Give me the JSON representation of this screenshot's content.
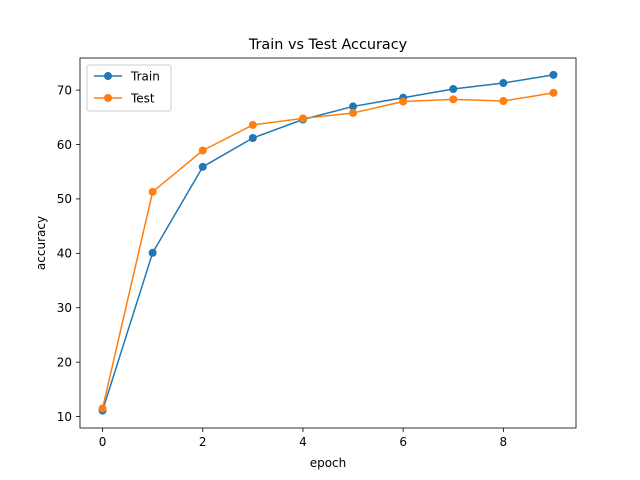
{
  "chart_data": {
    "type": "line",
    "title": "Train vs Test Accuracy",
    "xlabel": "epoch",
    "ylabel": "accuracy",
    "xlim": [
      -0.45,
      9.45
    ],
    "ylim": [
      7.9,
      75.9
    ],
    "xticks": [
      0,
      2,
      4,
      6,
      8
    ],
    "yticks": [
      10,
      20,
      30,
      40,
      50,
      60,
      70
    ],
    "grid": false,
    "legend_position": "top-left",
    "x": [
      0,
      1,
      2,
      3,
      4,
      5,
      6,
      7,
      8,
      9
    ],
    "series": [
      {
        "name": "Train",
        "color": "#1f77b4",
        "marker": "circle",
        "values": [
          11.1,
          40.1,
          55.9,
          61.2,
          64.6,
          67.0,
          68.6,
          70.2,
          71.3,
          72.8
        ]
      },
      {
        "name": "Test",
        "color": "#ff7f0e",
        "marker": "circle",
        "values": [
          11.5,
          51.3,
          58.9,
          63.6,
          64.8,
          65.8,
          67.9,
          68.3,
          68.0,
          69.5
        ]
      }
    ]
  }
}
